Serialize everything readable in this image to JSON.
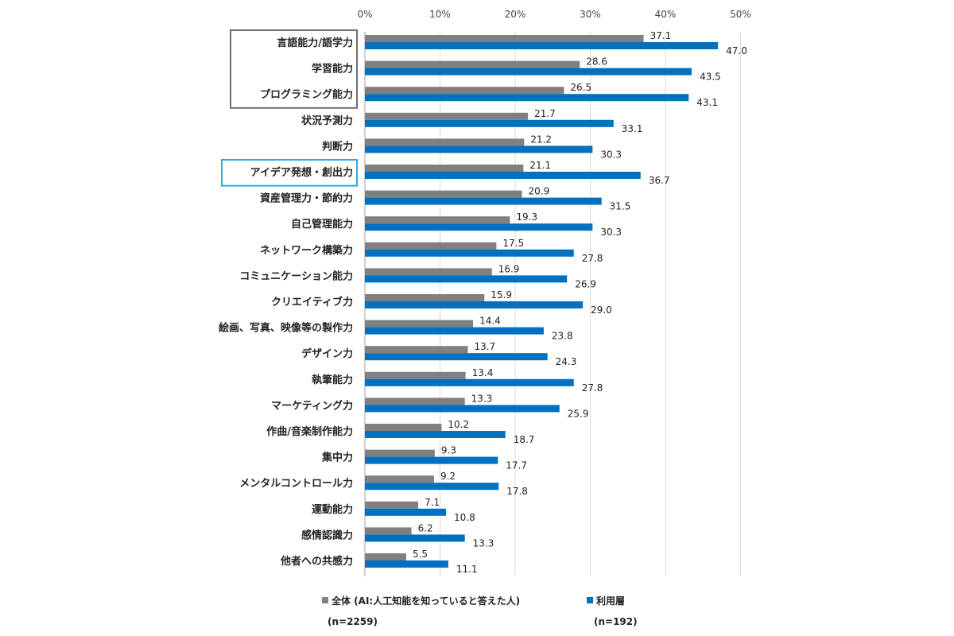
{
  "chart_data": {
    "type": "bar",
    "orientation": "horizontal",
    "xlim": [
      0,
      50
    ],
    "x_ticks": [
      "0%",
      "10%",
      "20%",
      "30%",
      "40%",
      "50%"
    ],
    "x_tick_values": [
      0,
      10,
      20,
      30,
      40,
      50
    ],
    "grid": true,
    "legend_position": "bottom",
    "categories": [
      "言語能力/語学力",
      "学習能力",
      "プログラミング能力",
      "状況予測力",
      "判断力",
      "アイデア発想・創出力",
      "資産管理力・節約力",
      "自己管理能力",
      "ネットワーク構築力",
      "コミュニケーション能力",
      "クリエイティブ力",
      "絵画、写真、映像等の製作力",
      "デザイン力",
      "執筆能力",
      "マーケティング力",
      "作曲/音楽制作能力",
      "集中力",
      "メンタルコントロール力",
      "運動能力",
      "感情認識力",
      "他者への共感力"
    ],
    "series": [
      {
        "name": "全体 (AI:人工知能を知っていると答えた人)",
        "sample": "(n=2259)",
        "color": "#808080",
        "values": [
          37.1,
          28.6,
          26.5,
          21.7,
          21.2,
          21.1,
          20.9,
          19.3,
          17.5,
          16.9,
          15.9,
          14.4,
          13.7,
          13.4,
          13.3,
          10.2,
          9.3,
          9.2,
          7.1,
          6.2,
          5.5
        ],
        "labels": [
          "37.1",
          "28.6",
          "26.5",
          "21.7",
          "21.2",
          "21.1",
          "20.9",
          "19.3",
          "17.5",
          "16.9",
          "15.9",
          "14.4",
          "13.7",
          "13.4",
          "13.3",
          "10.2",
          "9.3",
          "9.2",
          "7.1",
          "6.2",
          "5.5"
        ]
      },
      {
        "name": "利用層",
        "sample": "(n=192)",
        "color": "#0070C0",
        "values": [
          47.0,
          43.5,
          43.1,
          33.1,
          30.3,
          36.7,
          31.5,
          30.3,
          27.8,
          26.9,
          29.0,
          23.8,
          24.3,
          27.8,
          25.9,
          18.7,
          17.7,
          17.8,
          10.8,
          13.3,
          11.1
        ],
        "labels": [
          "47.0",
          "43.5",
          "43.1",
          "33.1",
          "30.3",
          "36.7",
          "31.5",
          "30.3",
          "27.8",
          "26.9",
          "29.0",
          "23.8",
          "24.3",
          "27.8",
          "25.9",
          "18.7",
          "17.7",
          "17.8",
          "10.8",
          "13.3",
          "11.1"
        ]
      }
    ],
    "highlight_boxes": [
      {
        "categories": [
          "言語能力/語学力",
          "学習能力",
          "プログラミング能力"
        ],
        "color": "#707070"
      },
      {
        "categories": [
          "アイデア発想・創出力"
        ],
        "color": "#29ABE2"
      }
    ]
  }
}
